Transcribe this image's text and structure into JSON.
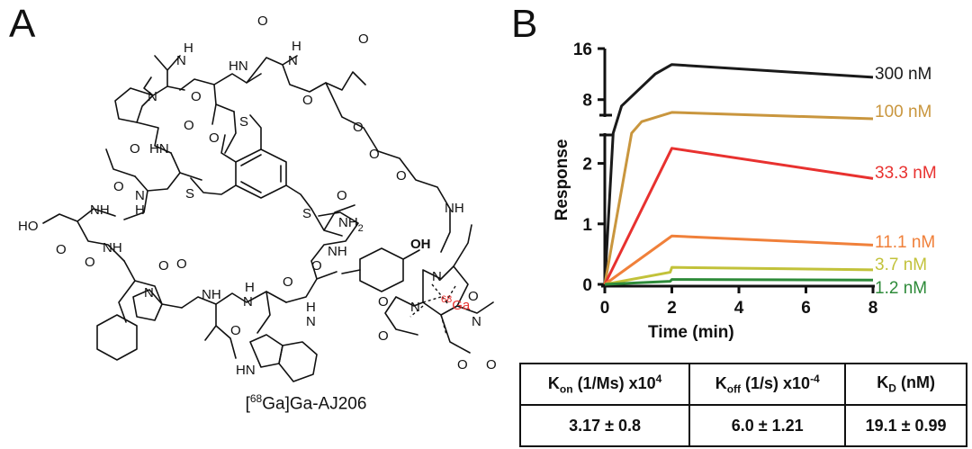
{
  "panels": {
    "a": "A",
    "b": "B"
  },
  "molecule": {
    "caption_pre": "[",
    "caption_sup": "68",
    "caption_post": "Ga]Ga-AJ206",
    "metal_mass": "68",
    "metal_symbol": "Ga",
    "metal_color": "#e8312f",
    "atom_labels": {
      "NH": "NH",
      "HN": "HN",
      "H": "H",
      "N": "N",
      "O": "O",
      "S": "S",
      "HO": "HO",
      "OH": "OH",
      "NH2": "NH",
      "sub2": "2"
    }
  },
  "chart_data": {
    "type": "line",
    "ylabel": "Response",
    "xlabel": "Time (min)",
    "xlim": [
      0,
      8
    ],
    "x_ticks": [
      "0",
      "2",
      "4",
      "6",
      "8"
    ],
    "y_ticks_lower": [
      "0",
      "1",
      "2"
    ],
    "y_ticks_upper": [
      "8",
      "16"
    ],
    "y_axis_break": true,
    "series": [
      {
        "name": "300 nM",
        "color": "#1a1a1a",
        "x": [
          0,
          0.25,
          0.5,
          1.0,
          1.5,
          2.0,
          8.0
        ],
        "y": [
          0,
          2.5,
          7.0,
          9.5,
          12.0,
          13.5,
          11.5
        ]
      },
      {
        "name": "100 nM",
        "color": "#c9963e",
        "x": [
          0,
          0.8,
          1.1,
          2.0,
          8.0
        ],
        "y": [
          0,
          2.5,
          4.5,
          6.0,
          5.0
        ]
      },
      {
        "name": "33.3 nM",
        "color": "#e8312f",
        "x": [
          0,
          2.0,
          8.0
        ],
        "y": [
          0,
          2.25,
          1.75
        ]
      },
      {
        "name": "11.1 nM",
        "color": "#f0803a",
        "x": [
          0,
          2.0,
          8.0
        ],
        "y": [
          0,
          0.8,
          0.65
        ]
      },
      {
        "name": "3.7 nM",
        "color": "#c2c23a",
        "x": [
          0,
          1.95,
          2.0,
          8.0
        ],
        "y": [
          0,
          0.2,
          0.28,
          0.24
        ]
      },
      {
        "name": "1.2 nM",
        "color": "#2e8b3a",
        "x": [
          0,
          1.95,
          2.0,
          8.0
        ],
        "y": [
          0,
          0.05,
          0.08,
          0.07
        ]
      }
    ]
  },
  "kinetics_table": {
    "headers": [
      {
        "main": "K",
        "sub": "on",
        "rest": " (1/Ms) x10",
        "sup": "4"
      },
      {
        "main": "K",
        "sub": "off",
        "rest": " (1/s) x10",
        "sup": "-4"
      },
      {
        "main": "K",
        "sub": "D",
        "rest": " (nM)",
        "sup": ""
      }
    ],
    "values": [
      "3.17 ± 0.8",
      "6.0 ± 1.21",
      "19.1 ± 0.99"
    ]
  }
}
